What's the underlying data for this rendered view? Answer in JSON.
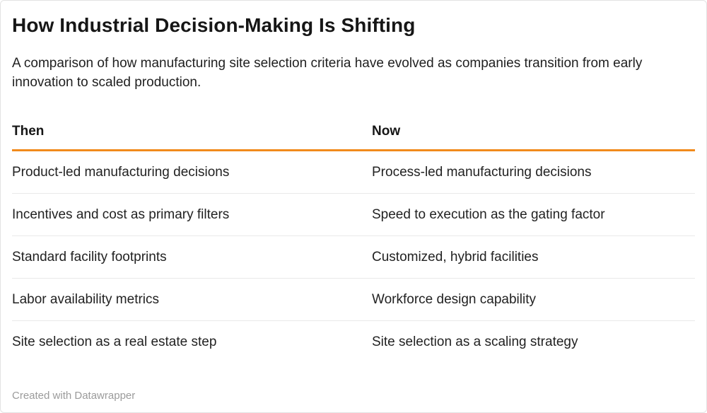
{
  "chart_data": {
    "type": "table",
    "title": "How Industrial Decision-Making Is Shifting",
    "subtitle": "A comparison of how manufacturing site selection criteria have evolved as companies transition from early innovation to scaled production.",
    "columns": [
      "Then",
      "Now"
    ],
    "rows": [
      [
        "Product-led manufacturing decisions",
        "Process-led manufacturing decisions"
      ],
      [
        "Incentives and cost as primary filters",
        "Speed to execution as the gating factor"
      ],
      [
        "Standard facility footprints",
        "Customized, hybrid facilities"
      ],
      [
        "Labor availability metrics",
        "Workforce design capability"
      ],
      [
        "Site selection as a real estate step",
        "Site selection as a scaling strategy"
      ]
    ],
    "legend_position": "none",
    "grid": "horizontal-row-separators"
  },
  "footer": {
    "attribution": "Created with Datawrapper"
  },
  "colors": {
    "accent_rule": "#f18a1c",
    "row_separator": "#e9e9e9",
    "frame_border": "#e3e3e3",
    "title_text": "#161616",
    "body_text": "#222222",
    "attribution_text": "#9b9b9b"
  }
}
